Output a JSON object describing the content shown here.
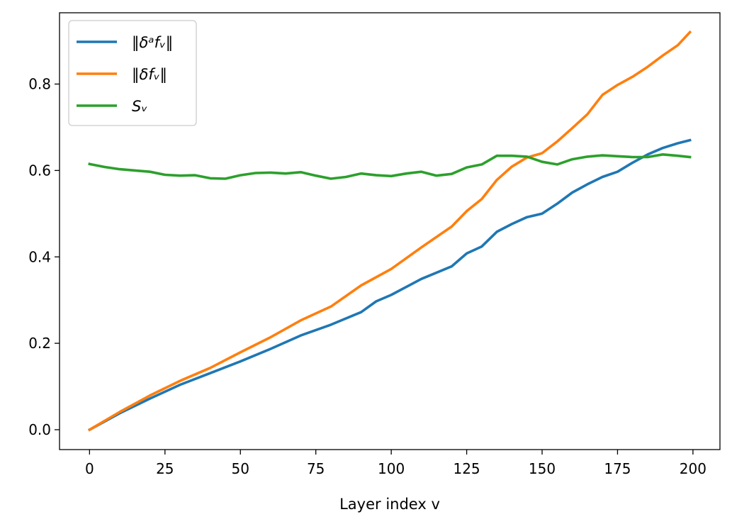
{
  "chart_data": {
    "type": "line",
    "title": "",
    "xlabel": "Layer index v",
    "ylabel": "",
    "xlim": [
      -9.95,
      208.95
    ],
    "ylim": [
      -0.046,
      0.965
    ],
    "xticks": [
      0,
      25,
      50,
      75,
      100,
      125,
      150,
      175,
      200
    ],
    "xtick_labels": [
      "0",
      "25",
      "50",
      "75",
      "100",
      "125",
      "150",
      "175",
      "200"
    ],
    "yticks": [
      0.0,
      0.2,
      0.4,
      0.6,
      0.8
    ],
    "ytick_labels": [
      "0.0",
      "0.2",
      "0.4",
      "0.6",
      "0.8"
    ],
    "grid": false,
    "legend_position": "upper-left",
    "series": [
      {
        "name": "‖δᵃfᵥ‖",
        "color": "#1f77b4",
        "x": [
          0,
          10,
          20,
          30,
          40,
          50,
          60,
          70,
          80,
          90,
          95,
          100,
          110,
          120,
          125,
          130,
          135,
          140,
          145,
          150,
          155,
          160,
          165,
          170,
          175,
          180,
          185,
          190,
          195,
          199
        ],
        "y": [
          0.0,
          0.038,
          0.072,
          0.104,
          0.131,
          0.158,
          0.187,
          0.218,
          0.243,
          0.272,
          0.297,
          0.312,
          0.349,
          0.378,
          0.408,
          0.424,
          0.458,
          0.476,
          0.492,
          0.5,
          0.523,
          0.549,
          0.568,
          0.585,
          0.597,
          0.618,
          0.637,
          0.652,
          0.663,
          0.67
        ]
      },
      {
        "name": "‖δfᵥ‖",
        "color": "#ff7f0e",
        "x": [
          0,
          10,
          20,
          30,
          40,
          50,
          60,
          70,
          80,
          90,
          100,
          110,
          120,
          125,
          130,
          135,
          140,
          145,
          150,
          155,
          160,
          165,
          170,
          175,
          180,
          185,
          190,
          195,
          199
        ],
        "y": [
          0.0,
          0.041,
          0.079,
          0.113,
          0.143,
          0.179,
          0.214,
          0.253,
          0.285,
          0.334,
          0.372,
          0.422,
          0.47,
          0.506,
          0.534,
          0.578,
          0.609,
          0.63,
          0.64,
          0.667,
          0.698,
          0.73,
          0.775,
          0.798,
          0.817,
          0.84,
          0.866,
          0.89,
          0.92
        ]
      },
      {
        "name": "Sᵥ",
        "color": "#2ca02c",
        "x": [
          0,
          5,
          10,
          15,
          20,
          25,
          30,
          35,
          40,
          45,
          50,
          55,
          60,
          65,
          70,
          75,
          80,
          85,
          90,
          95,
          100,
          105,
          110,
          115,
          120,
          125,
          130,
          135,
          140,
          145,
          150,
          155,
          160,
          165,
          170,
          175,
          180,
          185,
          190,
          195,
          199
        ],
        "y": [
          0.615,
          0.608,
          0.603,
          0.6,
          0.597,
          0.59,
          0.588,
          0.589,
          0.582,
          0.581,
          0.589,
          0.594,
          0.595,
          0.593,
          0.596,
          0.588,
          0.581,
          0.585,
          0.593,
          0.589,
          0.587,
          0.593,
          0.597,
          0.588,
          0.592,
          0.607,
          0.614,
          0.634,
          0.634,
          0.632,
          0.62,
          0.614,
          0.626,
          0.632,
          0.635,
          0.633,
          0.631,
          0.631,
          0.637,
          0.634,
          0.631
        ]
      }
    ]
  }
}
